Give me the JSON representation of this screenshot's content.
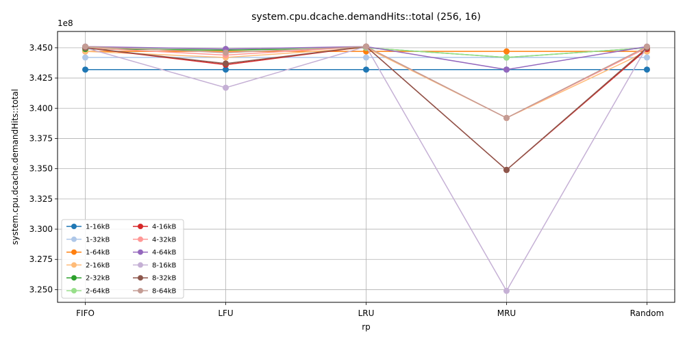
{
  "chart_data": {
    "type": "line",
    "title": "system.cpu.dcache.demandHits::total (256, 16)",
    "xlabel": "rp",
    "ylabel": "system.cpu.dcache.demandHits::total",
    "y_offset_label": "1e8",
    "categories": [
      "FIFO",
      "LFU",
      "LRU",
      "MRU",
      "Random"
    ],
    "ylim": [
      3.2395,
      3.4635
    ],
    "yticks": [
      "3.250",
      "3.275",
      "3.300",
      "3.325",
      "3.350",
      "3.375",
      "3.400",
      "3.425",
      "3.450"
    ],
    "grid": true,
    "legend_placement": "lower-left",
    "series": [
      {
        "name": "1-16kB",
        "color": "#1f77b4",
        "values": [
          3.432,
          3.432,
          3.432,
          3.432,
          3.432
        ]
      },
      {
        "name": "1-32kB",
        "color": "#aec7e8",
        "values": [
          3.442,
          3.442,
          3.442,
          3.442,
          3.442
        ]
      },
      {
        "name": "1-64kB",
        "color": "#ff7f0e",
        "values": [
          3.447,
          3.447,
          3.447,
          3.447,
          3.447
        ]
      },
      {
        "name": "2-16kB",
        "color": "#ffbb78",
        "values": [
          3.447,
          3.442,
          3.45,
          3.392,
          3.447
        ]
      },
      {
        "name": "2-32kB",
        "color": "#2ca02c",
        "values": [
          3.449,
          3.448,
          3.45,
          3.442,
          3.45
        ]
      },
      {
        "name": "2-64kB",
        "color": "#98df8a",
        "values": [
          3.45,
          3.449,
          3.45,
          3.442,
          3.45
        ]
      },
      {
        "name": "4-16kB",
        "color": "#d62728",
        "values": [
          3.45,
          3.436,
          3.451,
          3.349,
          3.449
        ]
      },
      {
        "name": "4-32kB",
        "color": "#ff9896",
        "values": [
          3.45,
          3.444,
          3.451,
          3.392,
          3.45
        ]
      },
      {
        "name": "4-64kB",
        "color": "#9467bd",
        "values": [
          3.451,
          3.449,
          3.451,
          3.432,
          3.451
        ]
      },
      {
        "name": "8-16kB",
        "color": "#c5b0d5",
        "values": [
          3.45,
          3.417,
          3.451,
          3.249,
          3.451
        ]
      },
      {
        "name": "8-32kB",
        "color": "#8c564b",
        "values": [
          3.45,
          3.437,
          3.451,
          3.349,
          3.45
        ]
      },
      {
        "name": "8-64kB",
        "color": "#c49c94",
        "values": [
          3.451,
          3.446,
          3.451,
          3.392,
          3.451
        ]
      }
    ]
  }
}
